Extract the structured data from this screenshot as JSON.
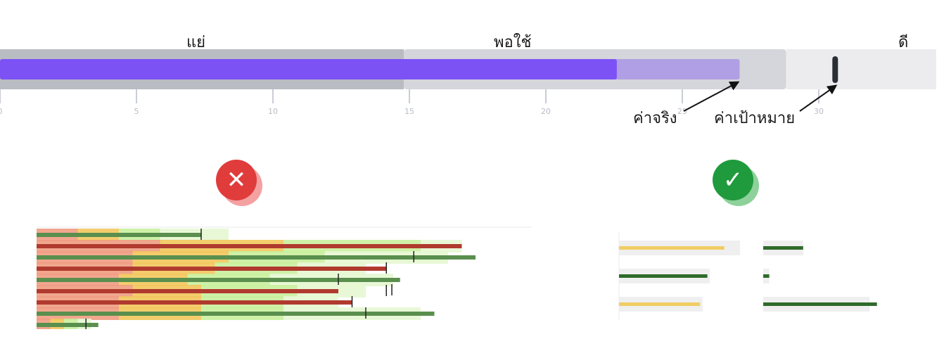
{
  "hero": {
    "bands": [
      {
        "label": "แย่",
        "to": 14.8,
        "color": "#b9bcc2"
      },
      {
        "label": "พอใช้",
        "to": 28.8,
        "color": "#d4d6db"
      },
      {
        "label": "ดี",
        "to": 34.3,
        "color": "#ececee"
      }
    ],
    "actual_label": "ค่าจริง",
    "target_label": "ค่าเป้าหมาย",
    "bar_color": "#7c52f5",
    "bar_light_color": "#b09fe4",
    "target_color": "#2a2f36",
    "tick_color": "#b7bcc6"
  },
  "chart_data": [
    {
      "type": "bar",
      "variant": "bullet",
      "series": [
        {
          "values": [
            22.6
          ]
        },
        {
          "values": [
            27.1
          ]
        }
      ],
      "target": 30.6,
      "ranges": [
        14.8,
        28.8,
        34.3
      ],
      "xticks": [
        "0",
        "5",
        "10",
        "15",
        "20",
        "25",
        "30"
      ],
      "xlim": [
        0,
        34.3
      ]
    },
    {
      "type": "bar",
      "variant": "cluttered-bullet",
      "rows": [
        {
          "value": 12,
          "target": 12,
          "color": "#5a8f4e",
          "ranges": [
            3,
            6,
            9,
            14
          ]
        },
        {
          "value": 31,
          "target": null,
          "color": "#b03a2e",
          "ranges": [
            9,
            18,
            28,
            31
          ]
        },
        {
          "value": 32,
          "target": 27.5,
          "color": "#5a8f4e",
          "ranges": [
            7,
            14,
            21,
            30
          ]
        },
        {
          "value": 25.5,
          "target": 25.5,
          "color": "#b03a2e",
          "ranges": [
            7,
            13,
            19,
            24
          ]
        },
        {
          "value": 26.5,
          "target": 22,
          "color": "#5a8f4e",
          "ranges": [
            6,
            11,
            17,
            26
          ]
        },
        {
          "value": 22,
          "target": 25.5,
          "color": "#b03a2e",
          "ranges": [
            7,
            12,
            19,
            24
          ]
        },
        {
          "value": 23,
          "target": 23,
          "color": "#b03a2e",
          "ranges": [
            6,
            12,
            18,
            22
          ]
        },
        {
          "value": 29,
          "target": 24,
          "color": "#5a8f4e",
          "ranges": [
            6,
            12,
            18,
            28
          ]
        },
        {
          "value": 4.5,
          "target": 3.6,
          "color": "#5a8f4e",
          "ranges": [
            1,
            2,
            3,
            4
          ]
        }
      ],
      "xlim": [
        0,
        35
      ]
    },
    {
      "type": "bar",
      "variant": "simple",
      "panels": [
        {
          "values": [
            8.7,
            7.3,
            6.7
          ],
          "colors": [
            "#f0cd63",
            "#2f6b2a",
            "#f0cd63"
          ],
          "track": [
            10,
            7.5,
            6.9
          ]
        },
        {
          "values": [
            3.3,
            0.5,
            9.4
          ],
          "colors": [
            "#2f6b2a",
            "#2f6b2a",
            "#2f6b2a"
          ],
          "track": [
            3.3,
            0.5,
            8.8
          ]
        }
      ]
    }
  ],
  "verdicts": {
    "bad_symbol": "✕",
    "good_symbol": "✓",
    "bad_color": "#e03c3c",
    "good_color": "#1f9a3c"
  }
}
